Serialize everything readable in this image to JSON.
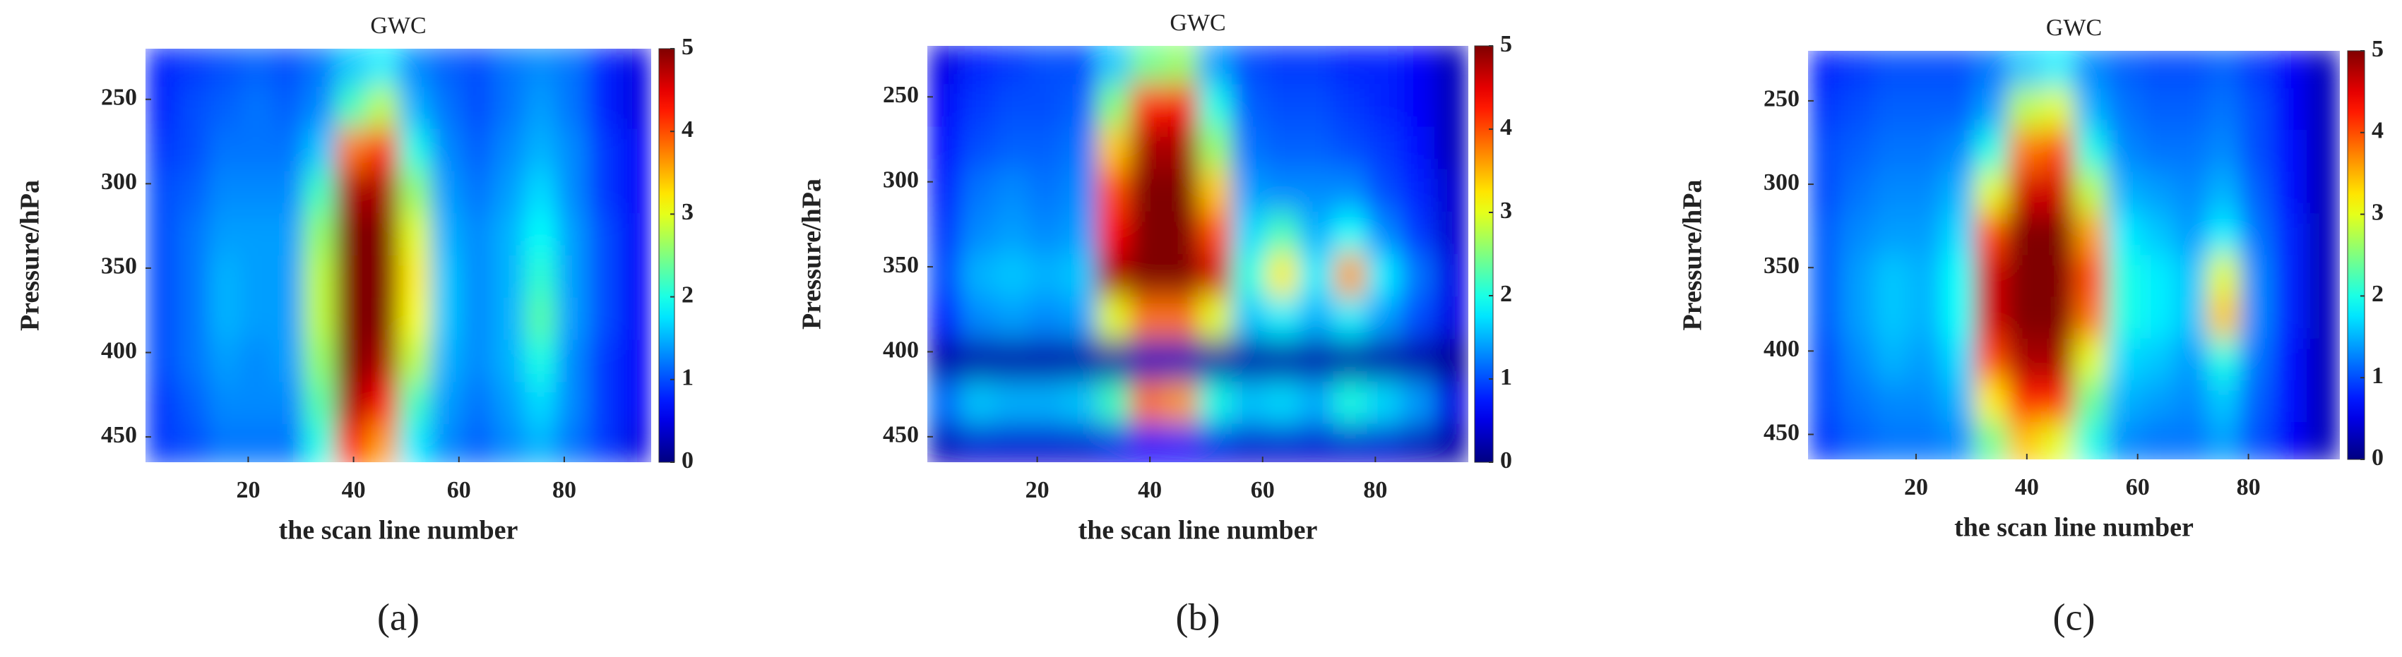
{
  "chart_data": [
    {
      "type": "heatmap",
      "title": "GWC",
      "panel_label": "(a)",
      "xlabel": "the scan line number",
      "ylabel": "Pressure/hPa",
      "colormap": "jet",
      "xlim": [
        0.5,
        96.5
      ],
      "xticks": [
        20,
        40,
        60,
        80
      ],
      "ylim": [
        220,
        465
      ],
      "y_direction": "reverse",
      "yticks": [
        250,
        300,
        350,
        400,
        450
      ],
      "clim": [
        0,
        5
      ],
      "cticks": [
        0,
        1,
        2,
        3,
        4,
        5
      ],
      "x": [
        3.5,
        9.5,
        15.5,
        21.5,
        27.5,
        33.5,
        39.5,
        45.5,
        51.5,
        57.5,
        63.5,
        69.5,
        75.5,
        81.5,
        87.5,
        93.5
      ],
      "y": [
        230,
        255,
        280,
        305,
        330,
        355,
        380,
        405,
        430,
        455
      ],
      "values": [
        [
          0.8,
          0.9,
          1.0,
          1.1,
          1.0,
          1.2,
          1.6,
          1.8,
          1.3,
          1.1,
          1.0,
          1.2,
          1.3,
          1.2,
          0.8,
          0.5
        ],
        [
          0.8,
          1.0,
          1.1,
          1.2,
          1.1,
          1.3,
          2.2,
          2.8,
          1.5,
          1.2,
          1.0,
          1.2,
          1.4,
          1.2,
          0.8,
          0.5
        ],
        [
          0.9,
          1.0,
          1.2,
          1.2,
          1.2,
          1.6,
          3.8,
          4.2,
          2.0,
          1.3,
          1.1,
          1.3,
          1.5,
          1.3,
          0.9,
          0.6
        ],
        [
          1.0,
          1.1,
          1.3,
          1.3,
          1.3,
          2.2,
          4.8,
          4.8,
          2.6,
          1.4,
          1.2,
          1.4,
          1.7,
          1.3,
          0.9,
          0.6
        ],
        [
          1.0,
          1.2,
          1.4,
          1.4,
          1.4,
          2.6,
          5,
          5,
          3.0,
          1.5,
          1.3,
          1.5,
          1.9,
          1.4,
          1.0,
          0.6
        ],
        [
          1.0,
          1.2,
          1.5,
          1.4,
          1.4,
          2.8,
          5,
          5,
          3.2,
          1.6,
          1.3,
          1.5,
          2.1,
          1.4,
          1.0,
          0.6
        ],
        [
          1.0,
          1.2,
          1.5,
          1.4,
          1.4,
          2.8,
          5,
          5,
          3.1,
          1.6,
          1.3,
          1.5,
          2.3,
          1.4,
          1.0,
          0.6
        ],
        [
          1.0,
          1.2,
          1.4,
          1.3,
          1.4,
          2.6,
          5,
          4.8,
          2.8,
          1.5,
          1.3,
          1.5,
          2.0,
          1.3,
          0.9,
          0.6
        ],
        [
          0.9,
          1.1,
          1.3,
          1.3,
          1.3,
          2.3,
          4.8,
          4.4,
          2.2,
          1.4,
          1.2,
          1.4,
          1.7,
          1.3,
          0.9,
          0.6
        ],
        [
          0.9,
          1.0,
          1.2,
          1.2,
          1.2,
          2.0,
          4.2,
          3.6,
          1.8,
          1.3,
          1.1,
          1.3,
          1.5,
          1.2,
          0.9,
          0.5
        ]
      ]
    },
    {
      "type": "heatmap",
      "title": "GWC",
      "panel_label": "(b)",
      "xlabel": "the scan line number",
      "ylabel": "Pressure/hPa",
      "colormap": "jet",
      "xlim": [
        0.5,
        96.5
      ],
      "xticks": [
        20,
        40,
        60,
        80
      ],
      "ylim": [
        220,
        465
      ],
      "y_direction": "reverse",
      "yticks": [
        250,
        300,
        350,
        400,
        450
      ],
      "clim": [
        0,
        5
      ],
      "cticks": [
        0,
        1,
        2,
        3,
        4,
        5
      ],
      "x": [
        3.5,
        9.5,
        15.5,
        21.5,
        27.5,
        33.5,
        39.5,
        45.5,
        51.5,
        57.5,
        63.5,
        69.5,
        75.5,
        81.5,
        87.5,
        93.5
      ],
      "y": [
        230,
        255,
        280,
        305,
        330,
        355,
        380,
        405,
        430,
        455
      ],
      "values": [
        [
          0.5,
          0.8,
          0.9,
          1.0,
          1.0,
          1.6,
          2.4,
          2.6,
          1.4,
          1.0,
          0.9,
          0.9,
          0.8,
          0.8,
          0.6,
          0.3
        ],
        [
          0.6,
          0.9,
          1.0,
          1.0,
          1.1,
          2.5,
          4.2,
          4.4,
          2.0,
          1.1,
          1.0,
          1.0,
          0.9,
          0.8,
          0.6,
          0.3
        ],
        [
          0.7,
          1.0,
          1.1,
          1.1,
          1.2,
          3.4,
          4.8,
          4.8,
          2.6,
          1.2,
          1.1,
          1.1,
          1.0,
          0.9,
          0.7,
          0.3
        ],
        [
          0.8,
          1.2,
          1.3,
          1.2,
          1.3,
          4.0,
          5,
          5,
          3.4,
          1.4,
          1.3,
          1.3,
          1.3,
          1.0,
          0.8,
          0.4
        ],
        [
          0.9,
          1.3,
          1.4,
          1.3,
          1.4,
          4.4,
          5,
          5,
          4.0,
          1.7,
          2.2,
          1.5,
          1.9,
          1.3,
          0.9,
          0.4
        ],
        [
          1.0,
          1.5,
          1.6,
          1.5,
          1.6,
          4.8,
          5,
          5,
          4.6,
          2.0,
          3.2,
          1.8,
          3.6,
          1.8,
          1.2,
          0.5
        ],
        [
          0.8,
          1.3,
          1.4,
          1.3,
          1.4,
          3.0,
          3.8,
          3.8,
          3.0,
          1.6,
          1.8,
          1.5,
          1.8,
          1.4,
          1.0,
          0.5
        ],
        [
          0.2,
          0.2,
          0.2,
          0.2,
          0.2,
          0.2,
          0.3,
          0.3,
          0.2,
          0.2,
          0.2,
          0.2,
          0.2,
          0.2,
          0.2,
          0.1
        ],
        [
          1.2,
          1.6,
          1.5,
          1.5,
          1.6,
          2.2,
          3.8,
          3.6,
          2.0,
          1.6,
          1.7,
          1.5,
          2.0,
          1.7,
          1.4,
          0.5
        ],
        [
          0.3,
          0.4,
          0.4,
          0.4,
          0.4,
          0.5,
          0.6,
          0.6,
          0.5,
          0.4,
          0.4,
          0.4,
          0.4,
          0.4,
          0.3,
          0.2
        ]
      ]
    },
    {
      "type": "heatmap",
      "title": "GWC",
      "panel_label": "(c)",
      "xlabel": "the scan line number",
      "ylabel": "Pressure/hPa",
      "colormap": "jet",
      "xlim": [
        0.5,
        96.5
      ],
      "xticks": [
        20,
        40,
        60,
        80
      ],
      "ylim": [
        220,
        465
      ],
      "y_direction": "reverse",
      "yticks": [
        250,
        300,
        350,
        400,
        450
      ],
      "clim": [
        0,
        5
      ],
      "cticks": [
        0,
        1,
        2,
        3,
        4,
        5
      ],
      "x": [
        3.5,
        9.5,
        15.5,
        21.5,
        27.5,
        33.5,
        39.5,
        45.5,
        51.5,
        57.5,
        63.5,
        69.5,
        75.5,
        81.5,
        87.5,
        93.5
      ],
      "y": [
        230,
        255,
        280,
        305,
        330,
        355,
        380,
        405,
        430,
        455
      ],
      "values": [
        [
          0.8,
          0.9,
          1.0,
          1.0,
          1.0,
          1.2,
          1.6,
          1.8,
          1.3,
          1.1,
          1.0,
          1.0,
          1.1,
          0.9,
          0.6,
          0.3
        ],
        [
          0.9,
          1.0,
          1.1,
          1.1,
          1.1,
          1.4,
          2.8,
          3.0,
          1.5,
          1.2,
          1.1,
          1.1,
          1.2,
          1.0,
          0.6,
          0.3
        ],
        [
          1.0,
          1.1,
          1.2,
          1.2,
          1.3,
          2.0,
          3.8,
          4.0,
          2.0,
          1.3,
          1.2,
          1.2,
          1.3,
          1.0,
          0.7,
          0.3
        ],
        [
          1.0,
          1.2,
          1.3,
          1.3,
          1.5,
          3.0,
          4.6,
          4.6,
          2.8,
          1.5,
          1.4,
          1.3,
          1.5,
          1.1,
          0.7,
          0.3
        ],
        [
          1.1,
          1.3,
          1.4,
          1.4,
          1.7,
          4.0,
          5,
          5,
          3.6,
          1.8,
          1.6,
          1.4,
          1.8,
          1.2,
          0.8,
          0.3
        ],
        [
          1.1,
          1.4,
          1.6,
          1.5,
          1.9,
          4.6,
          5,
          5,
          4.0,
          2.0,
          1.8,
          1.6,
          3.0,
          1.3,
          0.8,
          0.3
        ],
        [
          1.1,
          1.4,
          1.6,
          1.5,
          1.9,
          4.6,
          5,
          5,
          3.8,
          2.0,
          1.8,
          1.6,
          3.4,
          1.3,
          0.8,
          0.3
        ],
        [
          1.0,
          1.3,
          1.5,
          1.4,
          1.7,
          4.0,
          4.8,
          4.8,
          3.0,
          1.7,
          1.6,
          1.4,
          2.0,
          1.2,
          0.7,
          0.3
        ],
        [
          1.0,
          1.2,
          1.3,
          1.3,
          1.5,
          3.2,
          4.2,
          4.2,
          2.4,
          1.5,
          1.4,
          1.3,
          1.6,
          1.1,
          0.7,
          0.3
        ],
        [
          0.9,
          1.1,
          1.2,
          1.2,
          1.3,
          2.4,
          3.4,
          3.0,
          2.0,
          1.3,
          1.2,
          1.2,
          1.4,
          1.0,
          0.6,
          0.3
        ]
      ]
    }
  ]
}
